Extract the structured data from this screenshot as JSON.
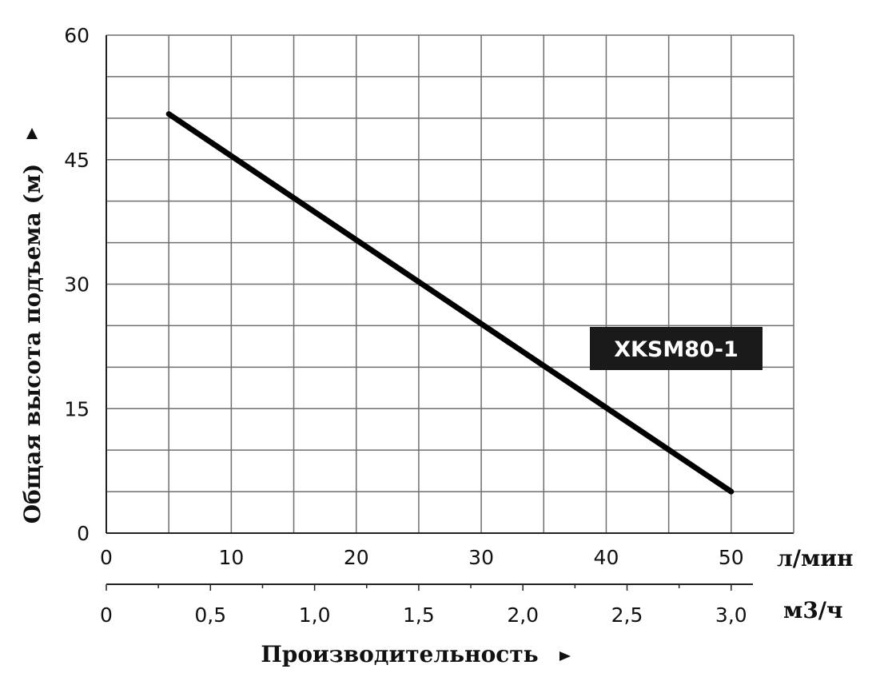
{
  "chart_data": {
    "type": "line",
    "title": "",
    "ylabel": "Общая высота подъема (м)",
    "xlabel": "Производительность",
    "ylim": [
      0,
      60
    ],
    "yticks": [
      0,
      15,
      30,
      45,
      60
    ],
    "xlim": [
      0,
      55
    ],
    "primary_x_unit": "л/мин",
    "primary_x_ticks": [
      "0",
      "10",
      "20",
      "30",
      "40",
      "50"
    ],
    "primary_x_tick_values": [
      0,
      10,
      20,
      30,
      40,
      50
    ],
    "secondary_x_unit": "м3/ч",
    "secondary_x_ticks": [
      "0",
      "0,5",
      "1,0",
      "1,5",
      "2,0",
      "2,5",
      "3,0"
    ],
    "secondary_x_tick_values": [
      0,
      8.333,
      16.667,
      25,
      33.333,
      41.667,
      50
    ],
    "grid": true,
    "series": [
      {
        "name": "XKSM80-1",
        "color": "#000000",
        "x": [
          5,
          50
        ],
        "y": [
          50.5,
          5
        ]
      }
    ]
  }
}
